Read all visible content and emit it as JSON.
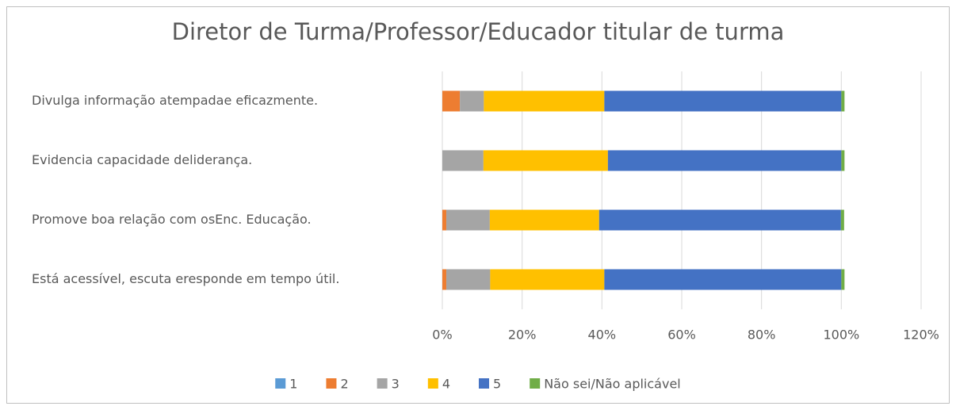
{
  "chart_data": {
    "type": "stacked-barh",
    "title": "Diretor de Turma/Professor/Educador titular de turma",
    "categories": [
      "Divulga informação atempadae eficazmente.",
      "Evidencia capacidade deliderança.",
      "Promove boa relação com osEnc. Educação.",
      "Está acessível, escuta eresponde em tempo útil."
    ],
    "series": [
      {
        "name": "1",
        "color": "#5b9bd5",
        "values": [
          0,
          0,
          0,
          0
        ]
      },
      {
        "name": "2",
        "color": "#ed7d31",
        "values": [
          4.4,
          0,
          1.0,
          1.0
        ]
      },
      {
        "name": "3",
        "color": "#a5a5a5",
        "values": [
          6.0,
          10.3,
          10.9,
          11.0
        ]
      },
      {
        "name": "4",
        "color": "#ffc000",
        "values": [
          30.2,
          31.2,
          27.4,
          28.6
        ]
      },
      {
        "name": "5",
        "color": "#4472c4",
        "values": [
          59.4,
          58.5,
          60.6,
          59.4
        ]
      },
      {
        "name": "Não sei/Não aplicável",
        "color": "#70ad47",
        "values": [
          0.8,
          0.8,
          0.8,
          0.8
        ]
      }
    ],
    "xlim": [
      0,
      120
    ],
    "xticks": [
      {
        "value": 0,
        "label": "0%"
      },
      {
        "value": 20,
        "label": "20%"
      },
      {
        "value": 40,
        "label": "40%"
      },
      {
        "value": 60,
        "label": "60%"
      },
      {
        "value": 80,
        "label": "80%"
      },
      {
        "value": 100,
        "label": "100%"
      },
      {
        "value": 120,
        "label": "120%"
      }
    ],
    "grid": true,
    "legend": "bottom"
  }
}
